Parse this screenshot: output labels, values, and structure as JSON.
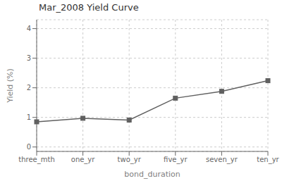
{
  "chart_data": {
    "type": "line",
    "title": "Mar_2008 Yield Curve",
    "xlabel": "bond_duration",
    "ylabel": "Yield (%)",
    "categories": [
      "three_mth",
      "one_yr",
      "two_yr",
      "five_yr",
      "seven_yr",
      "ten_yr"
    ],
    "values": [
      0.85,
      0.97,
      0.91,
      1.65,
      1.88,
      2.24
    ],
    "color": "#606060",
    "marker": "square",
    "ylim": [
      -0.15,
      4.3
    ],
    "yticks": [
      0,
      1,
      2,
      3,
      4
    ],
    "grid": true
  }
}
